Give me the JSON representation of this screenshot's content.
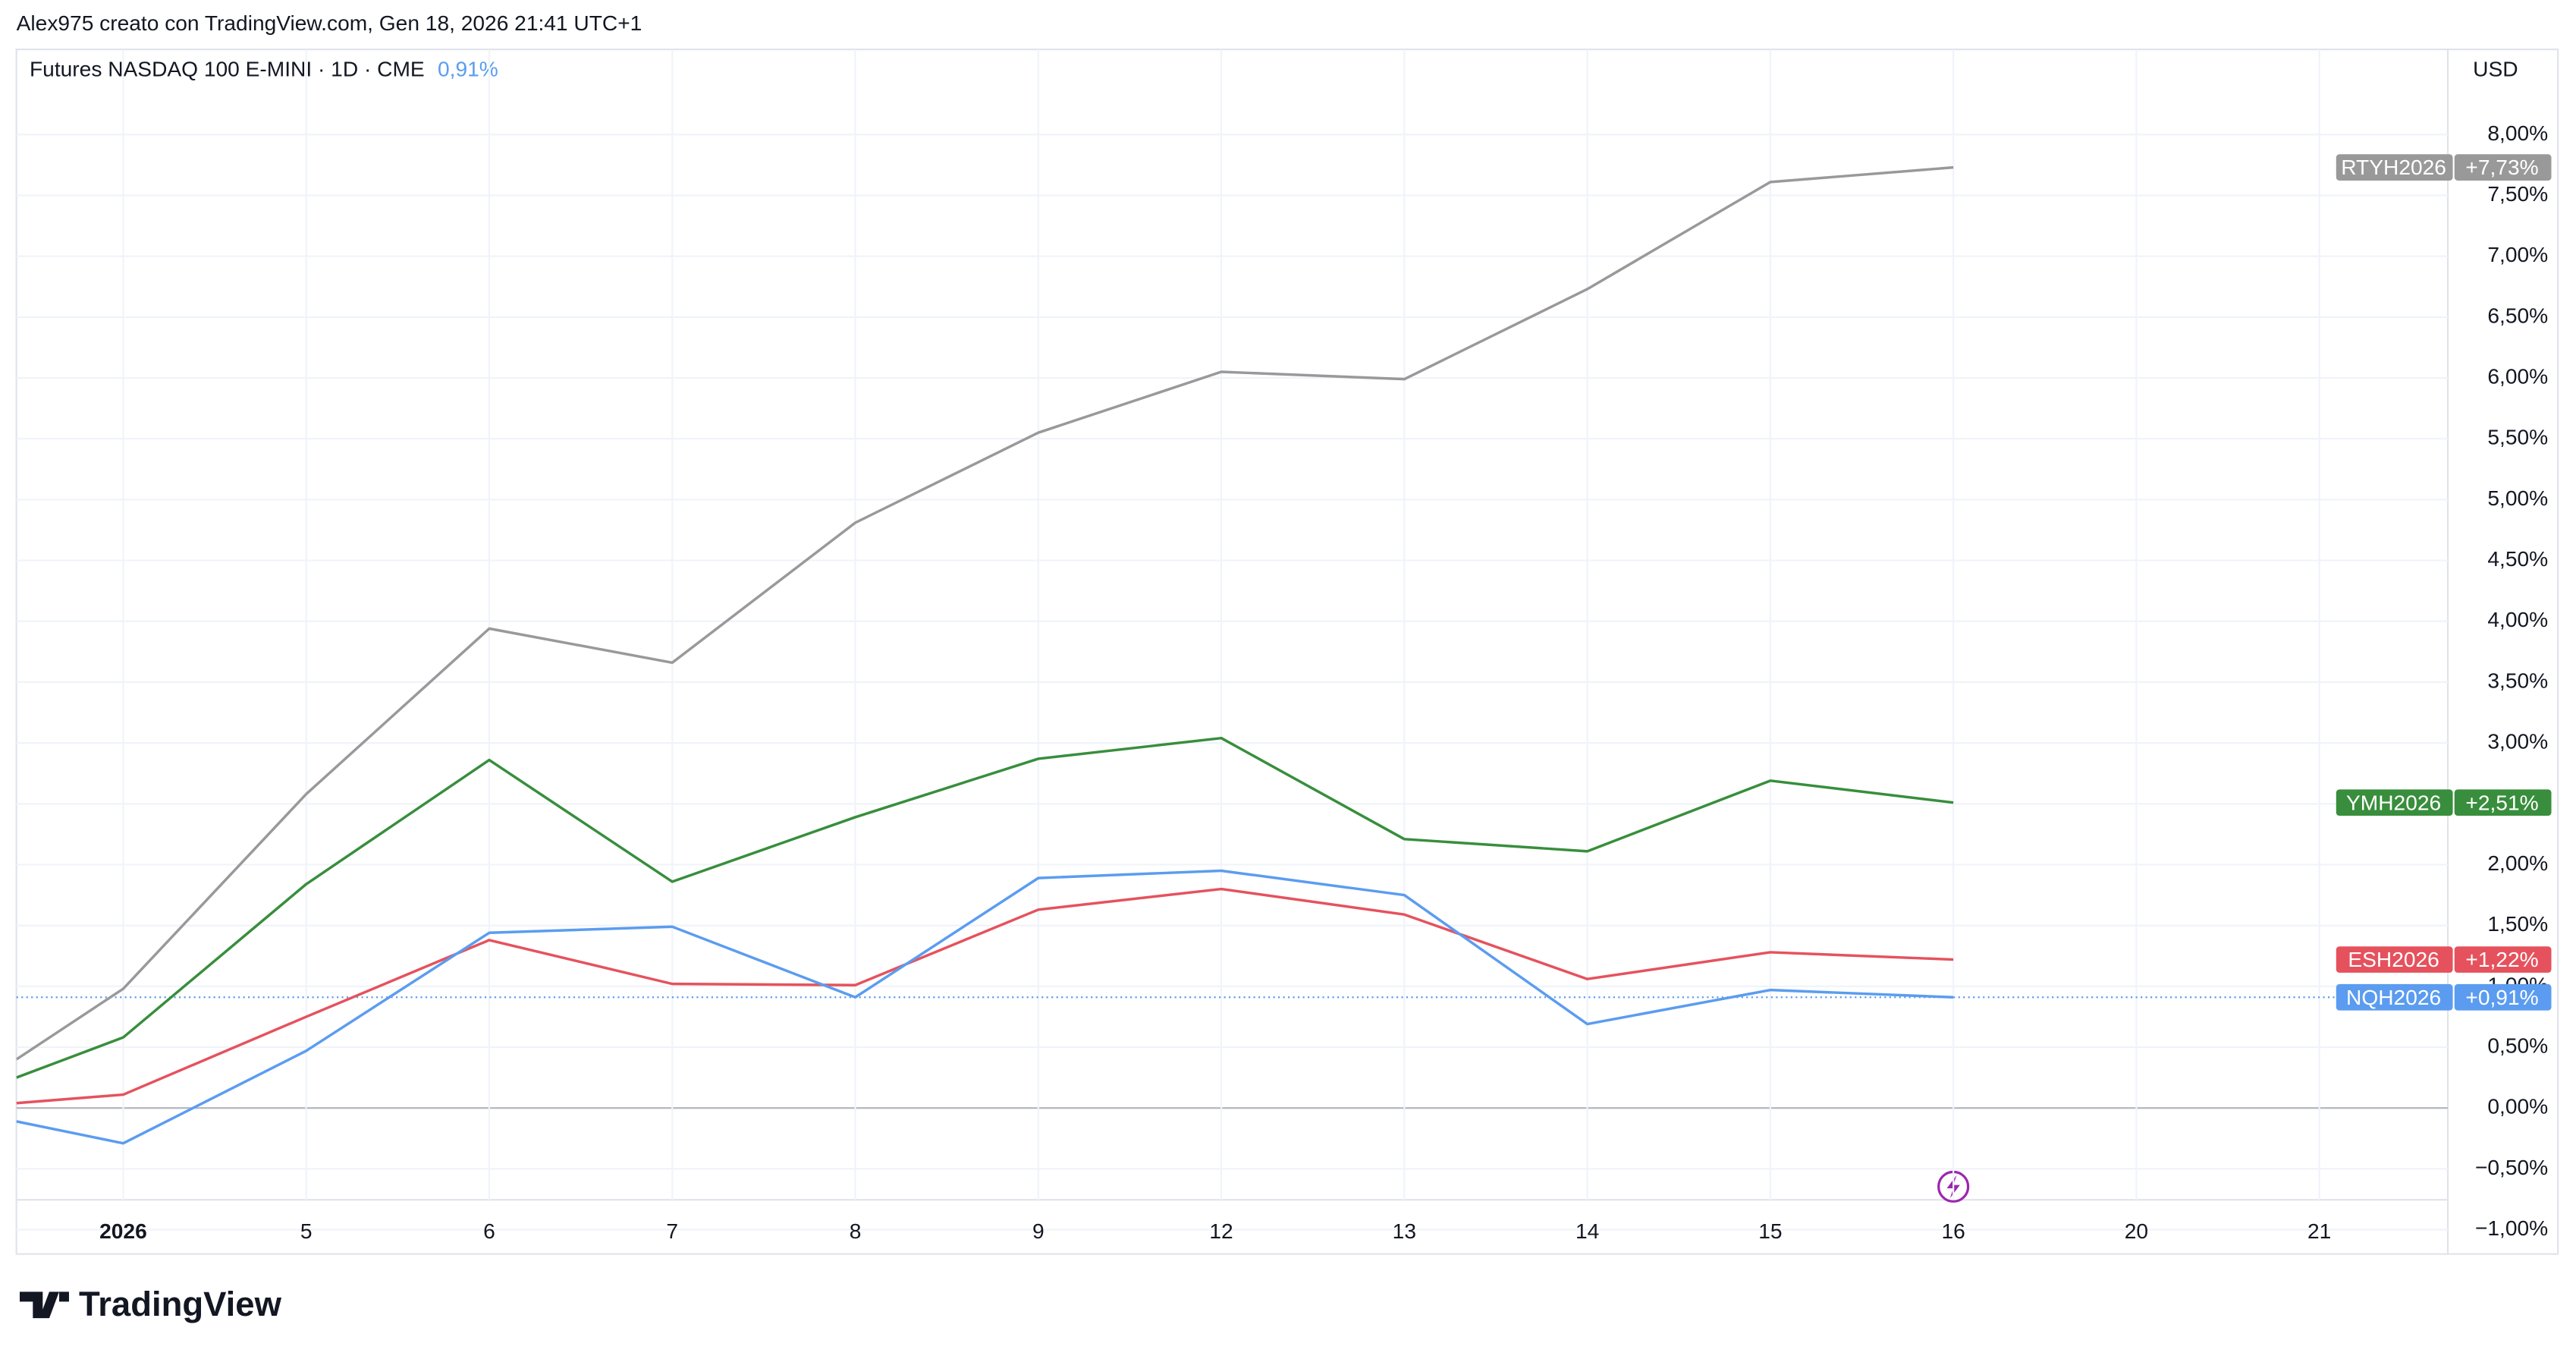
{
  "header": {
    "attribution": "Alex975 creato con TradingView.com, Gen 18, 2026 21:41 UTC+1"
  },
  "footer": {
    "logo": "TradingView"
  },
  "chart_data": {
    "type": "line",
    "legend_title": "Futures NASDAQ 100 E-MINI · 1D · CME",
    "legend_value": "0,91%",
    "currency": "USD",
    "categories": [
      null,
      "2026",
      "5",
      "6",
      "7",
      "8",
      "9",
      "12",
      "13",
      "14",
      "15",
      "16",
      "20",
      "21"
    ],
    "ylim": [
      -1.2,
      8.7
    ],
    "yticks": [
      {
        "value": -1,
        "label": "−1,00%"
      },
      {
        "value": -0.5,
        "label": "−0,50%"
      },
      {
        "value": 0,
        "label": "0,00%"
      },
      {
        "value": 0.5,
        "label": "0,50%"
      },
      {
        "value": 1,
        "label": "1,00%"
      },
      {
        "value": 1.5,
        "label": "1,50%"
      },
      {
        "value": 2,
        "label": "2,00%"
      },
      {
        "value": 2.5,
        "label": "2,50%"
      },
      {
        "value": 3,
        "label": "3,00%"
      },
      {
        "value": 3.5,
        "label": "3,50%"
      },
      {
        "value": 4,
        "label": "4,00%"
      },
      {
        "value": 4.5,
        "label": "4,50%"
      },
      {
        "value": 5,
        "label": "5,00%"
      },
      {
        "value": 5.5,
        "label": "5,50%"
      },
      {
        "value": 6,
        "label": "6,00%"
      },
      {
        "value": 6.5,
        "label": "6,50%"
      },
      {
        "value": 7,
        "label": "7,00%"
      },
      {
        "value": 7.5,
        "label": "7,50%"
      },
      {
        "value": 8,
        "label": "8,00%"
      }
    ],
    "grid": true,
    "series": [
      {
        "name": "RTYH2026",
        "color": "#999999",
        "values": [
          0.4,
          0.98,
          2.58,
          3.94,
          3.66,
          4.81,
          5.55,
          6.05,
          5.99,
          6.73,
          7.61,
          7.73,
          null,
          null
        ],
        "value_labels": [
          null,
          null,
          null,
          null,
          null,
          null,
          null,
          null,
          null,
          null,
          null,
          "+7,73%",
          null,
          null
        ]
      },
      {
        "name": "YMH2026",
        "color": "#388e3c",
        "values": [
          0.25,
          0.58,
          1.84,
          2.86,
          1.86,
          2.39,
          2.87,
          3.04,
          2.21,
          2.11,
          2.69,
          2.51,
          null,
          null
        ],
        "value_labels": [
          null,
          null,
          null,
          null,
          null,
          null,
          null,
          null,
          null,
          null,
          null,
          "+2,51%",
          null,
          null
        ]
      },
      {
        "name": "ESH2026",
        "color": "#e5525d",
        "values": [
          0.04,
          0.11,
          0.75,
          1.38,
          1.02,
          1.01,
          1.63,
          1.8,
          1.59,
          1.06,
          1.28,
          1.22,
          null,
          null
        ],
        "value_labels": [
          null,
          null,
          null,
          null,
          null,
          null,
          null,
          null,
          null,
          null,
          null,
          "+1,22%",
          null,
          null
        ]
      },
      {
        "name": "NQH2026",
        "color": "#5b9cf0",
        "values": [
          -0.11,
          -0.29,
          0.47,
          1.44,
          1.49,
          0.91,
          1.89,
          1.95,
          1.75,
          0.69,
          0.97,
          0.91,
          null,
          null
        ],
        "value_labels": [
          null,
          null,
          null,
          null,
          null,
          null,
          null,
          null,
          null,
          null,
          null,
          "+0,91%",
          null,
          null
        ]
      }
    ]
  }
}
